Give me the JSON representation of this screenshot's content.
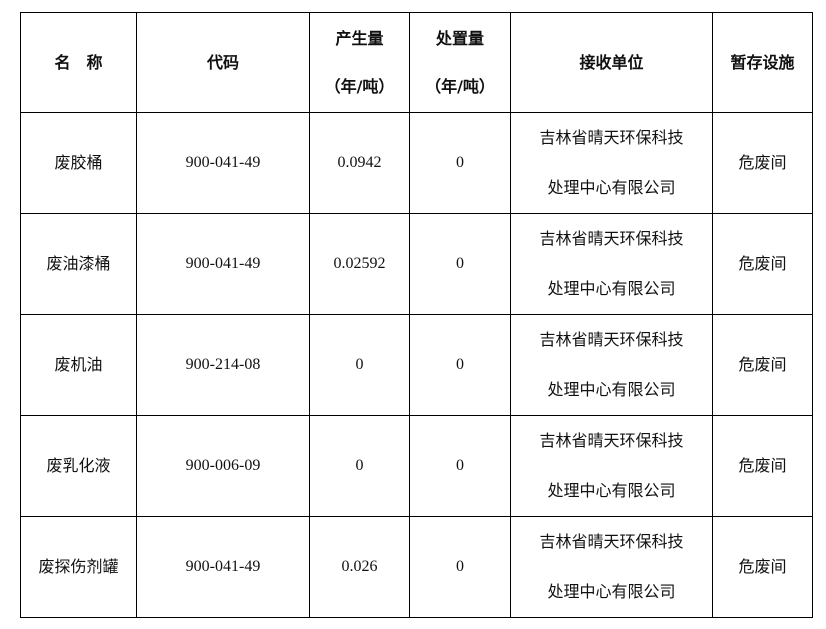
{
  "headers": {
    "name": "名　称",
    "code": "代码",
    "produced_line1": "产生量",
    "produced_line2": "（年/吨）",
    "disposed_line1": "处置量",
    "disposed_line2": "（年/吨）",
    "receiver": "接收单位",
    "storage": "暂存设施"
  },
  "rows": [
    {
      "name": "废胶桶",
      "code": "900-041-49",
      "produced": "0.0942",
      "disposed": "0",
      "receiver_line1": "吉林省晴天环保科技",
      "receiver_line2": "处理中心有限公司",
      "storage": "危废间"
    },
    {
      "name": "废油漆桶",
      "code": "900-041-49",
      "produced": "0.02592",
      "disposed": "0",
      "receiver_line1": "吉林省晴天环保科技",
      "receiver_line2": "处理中心有限公司",
      "storage": "危废间"
    },
    {
      "name": "废机油",
      "code": "900-214-08",
      "produced": "0",
      "disposed": "0",
      "receiver_line1": "吉林省晴天环保科技",
      "receiver_line2": "处理中心有限公司",
      "storage": "危废间"
    },
    {
      "name": "废乳化液",
      "code": "900-006-09",
      "produced": "0",
      "disposed": "0",
      "receiver_line1": "吉林省晴天环保科技",
      "receiver_line2": "处理中心有限公司",
      "storage": "危废间"
    },
    {
      "name": "废探伤剂罐",
      "code": "900-041-49",
      "produced": "0.026",
      "disposed": "0",
      "receiver_line1": "吉林省晴天环保科技",
      "receiver_line2": "处理中心有限公司",
      "storage": "危废间"
    }
  ]
}
